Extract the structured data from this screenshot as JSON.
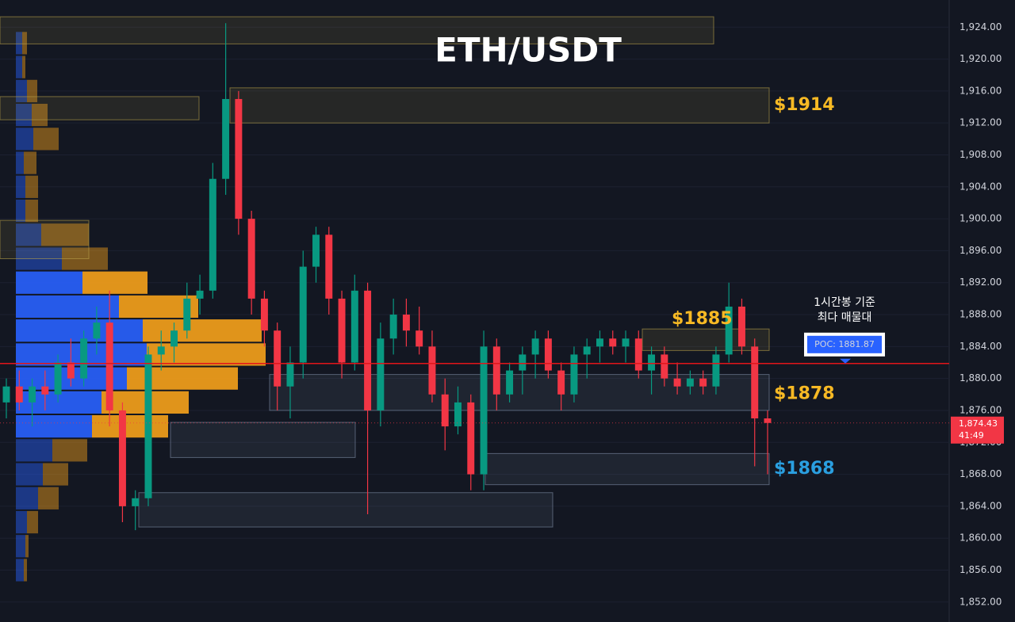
{
  "chart_data": {
    "type": "candlestick",
    "title": "ETH/USDT",
    "ylim": [
      1849.5,
      1927.4
    ],
    "yticks": [
      {
        "value": 1852,
        "label": "1,852.00"
      },
      {
        "value": 1856,
        "label": "1,856.00"
      },
      {
        "value": 1860,
        "label": "1,860.00"
      },
      {
        "value": 1864,
        "label": "1,864.00"
      },
      {
        "value": 1868,
        "label": "1,868.00"
      },
      {
        "value": 1872,
        "label": "1,872.00"
      },
      {
        "value": 1876,
        "label": "1,876.00"
      },
      {
        "value": 1880,
        "label": "1,880.00"
      },
      {
        "value": 1884,
        "label": "1,884.00"
      },
      {
        "value": 1888,
        "label": "1,888.00"
      },
      {
        "value": 1892,
        "label": "1,892.00"
      },
      {
        "value": 1896,
        "label": "1,896.00"
      },
      {
        "value": 1900,
        "label": "1,900.00"
      },
      {
        "value": 1904,
        "label": "1,904.00"
      },
      {
        "value": 1908,
        "label": "1,908.00"
      },
      {
        "value": 1912,
        "label": "1,912.00"
      },
      {
        "value": 1916,
        "label": "1,916.00"
      },
      {
        "value": 1920,
        "label": "1,920.00"
      },
      {
        "value": 1924,
        "label": "1,924.00"
      }
    ],
    "grid": true,
    "up_color": "#089981",
    "down_color": "#f23645",
    "open": [
      1877,
      1879,
      1877,
      1879,
      1878,
      1882,
      1880,
      1885,
      1887,
      1876,
      1864,
      1865,
      1883,
      1884,
      1886,
      1890,
      1891,
      1905,
      1915,
      1900,
      1890,
      1886,
      1879,
      1882,
      1894,
      1898,
      1890,
      1882,
      1891,
      1876,
      1885,
      1888,
      1886,
      1884,
      1878,
      1874,
      1877,
      1868,
      1884,
      1878,
      1881,
      1883,
      1885,
      1881,
      1878,
      1883,
      1884,
      1885,
      1884,
      1885,
      1881,
      1883,
      1880,
      1879,
      1880,
      1879,
      1883,
      1889,
      1884,
      1875
    ],
    "high": [
      1880,
      1881,
      1880,
      1881,
      1883,
      1885,
      1886,
      1889,
      1891,
      1877,
      1866,
      1884,
      1886,
      1887,
      1892,
      1893,
      1907,
      1924.5,
      1916,
      1901,
      1891,
      1887,
      1884,
      1896,
      1899,
      1899,
      1891,
      1893,
      1892,
      1887,
      1890,
      1890,
      1889,
      1886,
      1880,
      1879,
      1878,
      1886,
      1885,
      1882,
      1884,
      1886,
      1886,
      1882,
      1884,
      1885,
      1886,
      1886,
      1886,
      1886,
      1884,
      1884,
      1882,
      1881,
      1881,
      1884,
      1892,
      1890,
      1885,
      1876
    ],
    "low": [
      1875,
      1876,
      1874,
      1876,
      1877,
      1879,
      1879,
      1883,
      1874,
      1862,
      1861,
      1864,
      1881,
      1882,
      1885,
      1888,
      1890,
      1903,
      1898,
      1888,
      1884,
      1876,
      1875,
      1880,
      1892,
      1888,
      1880,
      1881,
      1863,
      1874,
      1883,
      1884,
      1883,
      1877,
      1871,
      1873,
      1866,
      1866,
      1876,
      1877,
      1878,
      1880,
      1880,
      1876,
      1877,
      1880,
      1882,
      1883,
      1882,
      1880,
      1878,
      1879,
      1878,
      1878,
      1878,
      1878,
      1882,
      1883,
      1869,
      1868
    ],
    "close": [
      1879,
      1877,
      1879,
      1878,
      1882,
      1880,
      1885,
      1887,
      1876,
      1864,
      1865,
      1883,
      1884,
      1886,
      1890,
      1891,
      1905,
      1915,
      1900,
      1890,
      1886,
      1879,
      1882,
      1894,
      1898,
      1890,
      1882,
      1891,
      1876,
      1885,
      1888,
      1886,
      1884,
      1878,
      1874,
      1877,
      1868,
      1884,
      1878,
      1881,
      1883,
      1885,
      1881,
      1878,
      1883,
      1884,
      1885,
      1884,
      1885,
      1881,
      1883,
      1880,
      1879,
      1880,
      1879,
      1883,
      1889,
      1884,
      1875,
      1874.43
    ],
    "zones": [
      {
        "low": 1921.9,
        "high": 1925.3,
        "color": "#b8a04a"
      },
      {
        "low": 1912.4,
        "high": 1915.3,
        "color": "#b8a04a"
      },
      {
        "low": 1912.0,
        "high": 1916.4,
        "color": "#b8a04a",
        "label": "$1914",
        "label_color": "#f7b924"
      },
      {
        "low": 1895.0,
        "high": 1899.8,
        "color": "#b8a04a"
      },
      {
        "low": 1883.5,
        "high": 1886.2,
        "color": "#b8a04a",
        "label": "$1885",
        "label_color": "#f7b924"
      },
      {
        "low": 1876.0,
        "high": 1880.5,
        "color": "#7f8ea6",
        "label": "$1878",
        "label_color": "#f7b924"
      },
      {
        "low": 1870.1,
        "high": 1874.5,
        "color": "#7f8ea6"
      },
      {
        "low": 1866.7,
        "high": 1870.6,
        "color": "#7f8ea6",
        "label": "$1868",
        "label_color": "#2a9fe0"
      },
      {
        "low": 1861.4,
        "high": 1865.7,
        "color": "#7f8ea6"
      }
    ],
    "volume_profile": {
      "prices": [
        1922,
        1919,
        1916,
        1913,
        1910,
        1907,
        1904,
        1901,
        1898,
        1895,
        1892,
        1889,
        1886,
        1883,
        1880,
        1877,
        1874,
        1871,
        1868,
        1865,
        1862,
        1859,
        1856
      ],
      "buy": [
        8,
        8,
        14,
        20,
        22,
        10,
        12,
        12,
        32,
        58,
        84,
        130,
        160,
        165,
        140,
        108,
        96,
        46,
        34,
        28,
        14,
        12,
        10
      ],
      "sell": [
        6,
        4,
        13,
        20,
        32,
        16,
        16,
        16,
        60,
        58,
        82,
        100,
        150,
        150,
        140,
        110,
        96,
        44,
        32,
        26,
        14,
        4,
        4
      ],
      "buy_color": "#2962ff",
      "sell_color": "#f7a21b"
    },
    "poc": {
      "value": 1881.87,
      "label": "POC: 1881.87"
    },
    "callout": [
      "1시간봉 기준",
      "최다 매물대"
    ],
    "last_price": {
      "value": 1874.43,
      "label": "1,874.43"
    },
    "countdown": "41:49"
  }
}
